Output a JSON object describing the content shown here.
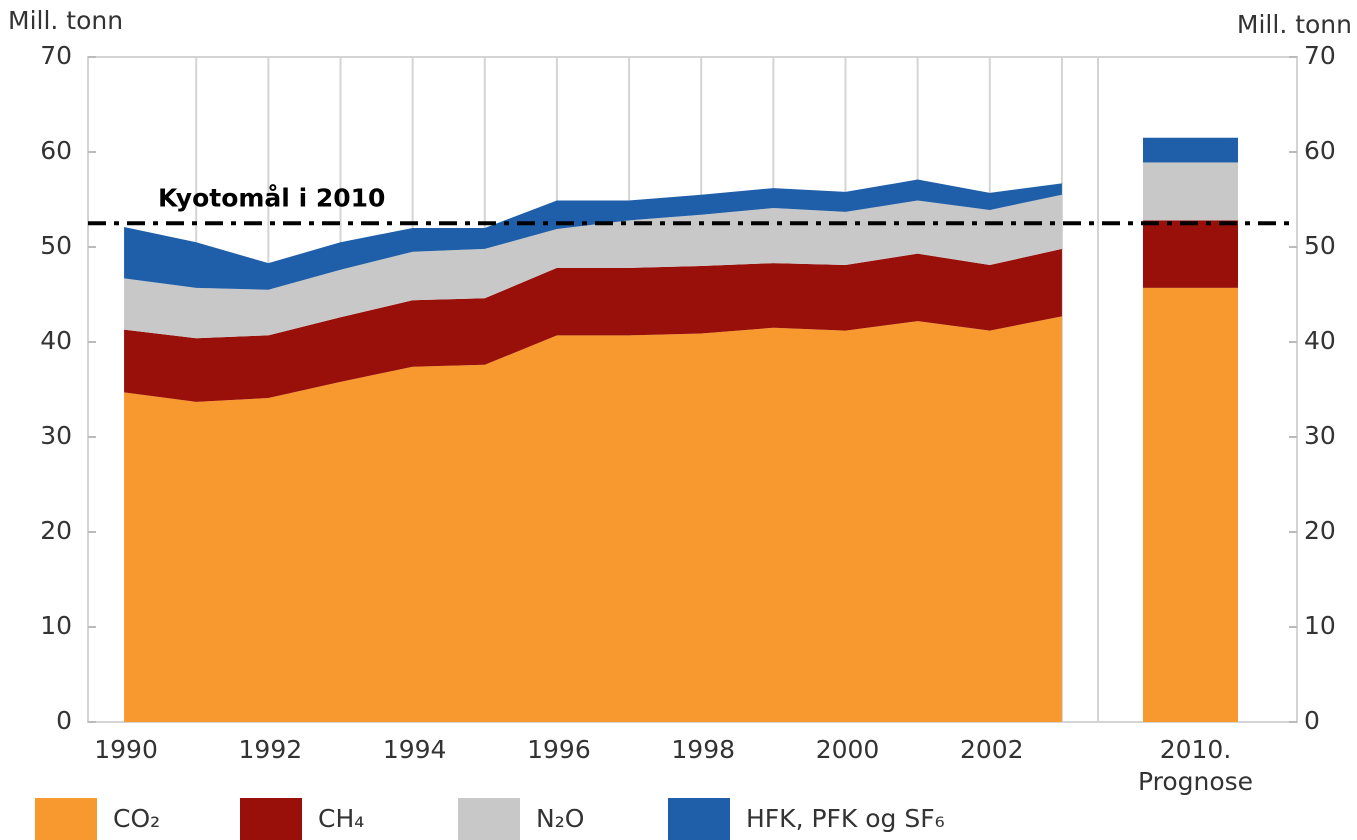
{
  "chart_data": {
    "type": "area",
    "y_label": "Mill. tonn",
    "y2_label": "Mill. tonn",
    "x": [
      1990,
      1991,
      1992,
      1993,
      1994,
      1995,
      1996,
      1997,
      1998,
      1999,
      2000,
      2001,
      2002,
      2003
    ],
    "xlim": [
      1989.5,
      2003.5
    ],
    "xticks": [
      1990,
      1992,
      1994,
      1996,
      1998,
      2000,
      2002
    ],
    "ylim": [
      0,
      70
    ],
    "yticks": [
      0,
      10,
      20,
      30,
      40,
      50,
      60,
      70
    ],
    "y2lim": [
      0,
      70
    ],
    "y2ticks": [
      0,
      10,
      20,
      30,
      40,
      50,
      60,
      70
    ],
    "grid": "vertical",
    "legend": "bottom",
    "series": [
      {
        "name": "CO₂",
        "color": "#f7992f",
        "values": [
          34.7,
          33.7,
          34.1,
          35.8,
          37.4,
          37.6,
          40.7,
          40.7,
          40.9,
          41.5,
          41.2,
          42.2,
          41.2,
          42.7
        ]
      },
      {
        "name": "CH₄",
        "color": "#990f0a",
        "values": [
          6.6,
          6.7,
          6.6,
          6.8,
          7.0,
          7.0,
          7.1,
          7.1,
          7.1,
          6.8,
          6.9,
          7.1,
          6.9,
          7.1
        ]
      },
      {
        "name": "N₂O",
        "color": "#c8c8c8",
        "values": [
          5.4,
          5.3,
          4.8,
          5.0,
          5.1,
          5.2,
          4.1,
          5.0,
          5.4,
          5.8,
          5.6,
          5.6,
          5.8,
          5.7
        ]
      },
      {
        "name": "HFK, PFK og SF₆",
        "color": "#1f5fa9",
        "values": [
          5.4,
          4.8,
          2.8,
          2.9,
          2.5,
          2.2,
          3.0,
          2.1,
          2.1,
          2.1,
          2.1,
          2.2,
          1.8,
          1.2
        ]
      }
    ],
    "forecast": {
      "label": [
        "2010.",
        "Prognose"
      ],
      "values": [
        45.7,
        7.1,
        6.1,
        2.6
      ]
    },
    "annotation": {
      "text": "Kyotomål i 2010",
      "value": 52.5
    }
  }
}
